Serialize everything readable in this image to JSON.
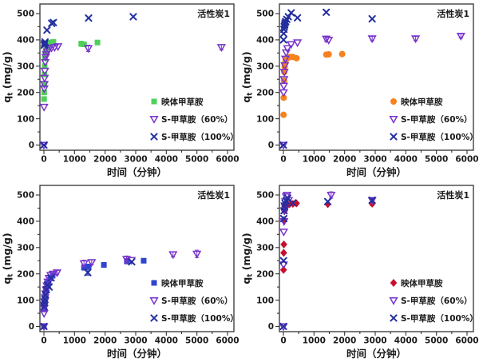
{
  "figure": {
    "background": "#ffffff",
    "text_color": "#1a1a1a",
    "frame_color": "#333333"
  },
  "axes": {
    "x": {
      "min": 0,
      "max": 6000,
      "major": 1000,
      "minor": 500,
      "label": "时间（分钟）",
      "tick_labels": [
        "0",
        "1000",
        "2000",
        "3000",
        "4000",
        "5000",
        "6000"
      ]
    },
    "y": {
      "min": 0,
      "max": 500,
      "major": 100,
      "minor": 50,
      "label_symbol": "q",
      "label_sub": "t",
      "label_units": " (mg/g)",
      "tick_labels": [
        "0",
        "100",
        "200",
        "300",
        "400",
        "500"
      ]
    }
  },
  "chart_data": [
    {
      "id": "top-left",
      "type": "scatter",
      "annotation": "活性炭1",
      "xlabel": "时间（分钟）",
      "ylabel": "qt (mg/g)",
      "xlim": [
        0,
        6000
      ],
      "ylim": [
        0,
        500
      ],
      "legend_position": "lower-right-inside",
      "series": [
        {
          "label": "映体甲草胺",
          "marker": "square",
          "open": false,
          "color": "#4ed05a",
          "points": [
            [
              5,
              175
            ],
            [
              8,
              200
            ],
            [
              12,
              230
            ],
            [
              18,
              268
            ],
            [
              25,
              300
            ],
            [
              35,
              330
            ],
            [
              50,
              352
            ],
            [
              70,
              368
            ],
            [
              100,
              378
            ],
            [
              150,
              385
            ],
            [
              200,
              390
            ],
            [
              310,
              392
            ],
            [
              1220,
              385,
              10
            ],
            [
              1310,
              383
            ],
            [
              1750,
              390
            ]
          ]
        },
        {
          "label": "S-甲草胺（60%）",
          "marker": "triangle-down",
          "open": true,
          "color": "#7733cc",
          "points": [
            [
              0,
              0
            ],
            [
              5,
              145
            ],
            [
              10,
              215
            ],
            [
              15,
              232
            ],
            [
              22,
              255
            ],
            [
              30,
              282
            ],
            [
              42,
              315
            ],
            [
              58,
              335
            ],
            [
              78,
              345
            ],
            [
              105,
              355
            ],
            [
              150,
              363
            ],
            [
              250,
              370
            ],
            [
              350,
              372
            ],
            [
              460,
              375
            ],
            [
              1450,
              368,
              12
            ],
            [
              5800,
              372,
              10
            ]
          ]
        },
        {
          "label": "S-甲草胺（100%）",
          "marker": "x",
          "open": true,
          "color": "#232f9e",
          "points": [
            [
              0,
              0
            ],
            [
              12,
              380
            ],
            [
              22,
              386
            ],
            [
              35,
              392
            ],
            [
              100,
              437
            ],
            [
              255,
              463
            ],
            [
              310,
              466
            ],
            [
              1460,
              483
            ],
            [
              2920,
              488
            ]
          ]
        }
      ]
    },
    {
      "id": "top-right",
      "type": "scatter",
      "annotation": "活性炭1",
      "xlabel": "时间（分钟）",
      "ylabel": "qt (mg/g)",
      "xlim": [
        0,
        6000
      ],
      "ylim": [
        0,
        500
      ],
      "legend_position": "lower-right-inside",
      "series": [
        {
          "label": "映体甲草胺",
          "marker": "circle",
          "open": false,
          "color": "#f5821f",
          "points": [
            [
              5,
              115
            ],
            [
              10,
              180
            ],
            [
              20,
              245
            ],
            [
              30,
              278
            ],
            [
              42,
              298
            ],
            [
              58,
              313
            ],
            [
              78,
              323
            ],
            [
              105,
              330
            ],
            [
              150,
              332
            ],
            [
              210,
              335
            ],
            [
              310,
              335
            ],
            [
              430,
              330
            ],
            [
              1400,
              344,
              8
            ],
            [
              1480,
              345
            ],
            [
              1920,
              346
            ]
          ]
        },
        {
          "label": "S-甲草胺（60%）",
          "marker": "triangle-down",
          "open": true,
          "color": "#7733cc",
          "points": [
            [
              0,
              0
            ],
            [
              5,
              200
            ],
            [
              12,
              225
            ],
            [
              20,
              250
            ],
            [
              30,
              278
            ],
            [
              45,
              303
            ],
            [
              65,
              328
            ],
            [
              90,
              352
            ],
            [
              130,
              368
            ],
            [
              250,
              383
            ],
            [
              460,
              390
            ],
            [
              1400,
              404,
              10
            ],
            [
              1480,
              400
            ],
            [
              2900,
              405,
              8
            ],
            [
              4320,
              405,
              8
            ],
            [
              5800,
              415,
              8
            ]
          ]
        },
        {
          "label": "S-甲草胺（100%）",
          "marker": "x",
          "open": true,
          "color": "#232f9e",
          "points": [
            [
              0,
              0
            ],
            [
              5,
              400
            ],
            [
              10,
              424
            ],
            [
              18,
              440
            ],
            [
              28,
              450
            ],
            [
              40,
              457
            ],
            [
              55,
              464
            ],
            [
              75,
              470
            ],
            [
              110,
              478
            ],
            [
              160,
              488
            ],
            [
              255,
              503
            ],
            [
              460,
              484
            ],
            [
              1400,
              505
            ],
            [
              2900,
              480
            ]
          ]
        }
      ]
    },
    {
      "id": "bottom-left",
      "type": "scatter",
      "annotation": "活性炭1",
      "xlabel": "时间（分钟）",
      "ylabel": "qt (mg/g)",
      "xlim": [
        0,
        6000
      ],
      "ylim": [
        0,
        500
      ],
      "legend_position": "lower-right-inside",
      "series": [
        {
          "label": "映体甲草胺",
          "marker": "square",
          "open": false,
          "color": "#2f45cf",
          "points": [
            [
              0,
              0
            ],
            [
              5,
              65
            ],
            [
              10,
              75
            ],
            [
              15,
              85
            ],
            [
              22,
              95
            ],
            [
              32,
              105
            ],
            [
              45,
              115
            ],
            [
              62,
              130
            ],
            [
              85,
              142
            ],
            [
              115,
              155
            ],
            [
              155,
              170
            ],
            [
              210,
              183
            ],
            [
              285,
              193
            ],
            [
              1310,
              224,
              10
            ],
            [
              1460,
              228
            ],
            [
              1960,
              234,
              8
            ],
            [
              2710,
              248,
              10
            ],
            [
              3260,
              250
            ]
          ]
        },
        {
          "label": "S-甲草胺（60%）",
          "marker": "triangle-down",
          "open": true,
          "color": "#7733cc",
          "points": [
            [
              0,
              0
            ],
            [
              5,
              50
            ],
            [
              10,
              70
            ],
            [
              16,
              82
            ],
            [
              25,
              95
            ],
            [
              36,
              110
            ],
            [
              52,
              125
            ],
            [
              72,
              140
            ],
            [
              95,
              155
            ],
            [
              125,
              170
            ],
            [
              165,
              184
            ],
            [
              220,
              195
            ],
            [
              300,
              200
            ],
            [
              430,
              205,
              8
            ],
            [
              1310,
              240,
              12
            ],
            [
              1560,
              244,
              10
            ],
            [
              2700,
              256,
              12
            ],
            [
              2860,
              252
            ],
            [
              4220,
              274,
              10
            ],
            [
              5000,
              276,
              14
            ]
          ]
        },
        {
          "label": "S-甲草胺（100%）",
          "marker": "x",
          "open": true,
          "color": "#232f9e",
          "points": [
            [
              0,
              0
            ],
            [
              10,
              75
            ],
            [
              20,
              90
            ],
            [
              32,
              102
            ],
            [
              50,
              120
            ],
            [
              80,
              140
            ],
            [
              120,
              158
            ],
            [
              170,
              150
            ],
            [
              235,
              185
            ],
            [
              1435,
              205,
              10
            ],
            [
              2870,
              246
            ]
          ]
        }
      ]
    },
    {
      "id": "bottom-right",
      "type": "scatter",
      "annotation": "活性炭1",
      "xlabel": "时间（分钟）",
      "ylabel": "qt (mg/g)",
      "xlim": [
        0,
        6000
      ],
      "ylim": [
        0,
        500
      ],
      "legend_position": "lower-right-inside",
      "series": [
        {
          "label": "映体甲草胺",
          "marker": "diamond",
          "open": false,
          "color": "#c8102e",
          "points": [
            [
              5,
              215
            ],
            [
              10,
              280
            ],
            [
              15,
              312
            ],
            [
              25,
              405
            ],
            [
              40,
              440
            ],
            [
              60,
              452
            ],
            [
              90,
              460
            ],
            [
              130,
              462
            ],
            [
              200,
              465
            ],
            [
              310,
              466
            ],
            [
              430,
              468
            ],
            [
              1450,
              465
            ],
            [
              2900,
              467,
              8
            ]
          ]
        },
        {
          "label": "S-甲草胺（60%）",
          "marker": "triangle-down",
          "open": true,
          "color": "#7733cc",
          "points": [
            [
              0,
              0
            ],
            [
              5,
              235
            ],
            [
              10,
              360
            ],
            [
              20,
              400
            ],
            [
              30,
              440
            ],
            [
              45,
              460
            ],
            [
              65,
              475
            ],
            [
              90,
              494
            ],
            [
              120,
              500
            ],
            [
              170,
              480
            ],
            [
              1560,
              500,
              12
            ],
            [
              2900,
              480
            ]
          ]
        },
        {
          "label": "S-甲草胺（100%）",
          "marker": "x",
          "open": true,
          "color": "#232f9e",
          "points": [
            [
              0,
              0
            ],
            [
              5,
              250
            ],
            [
              12,
              410
            ],
            [
              22,
              440
            ],
            [
              35,
              455
            ],
            [
              55,
              468
            ],
            [
              90,
              478
            ],
            [
              140,
              488
            ],
            [
              310,
              470
            ],
            [
              1450,
              475
            ],
            [
              2900,
              480,
              8
            ]
          ]
        }
      ]
    }
  ]
}
